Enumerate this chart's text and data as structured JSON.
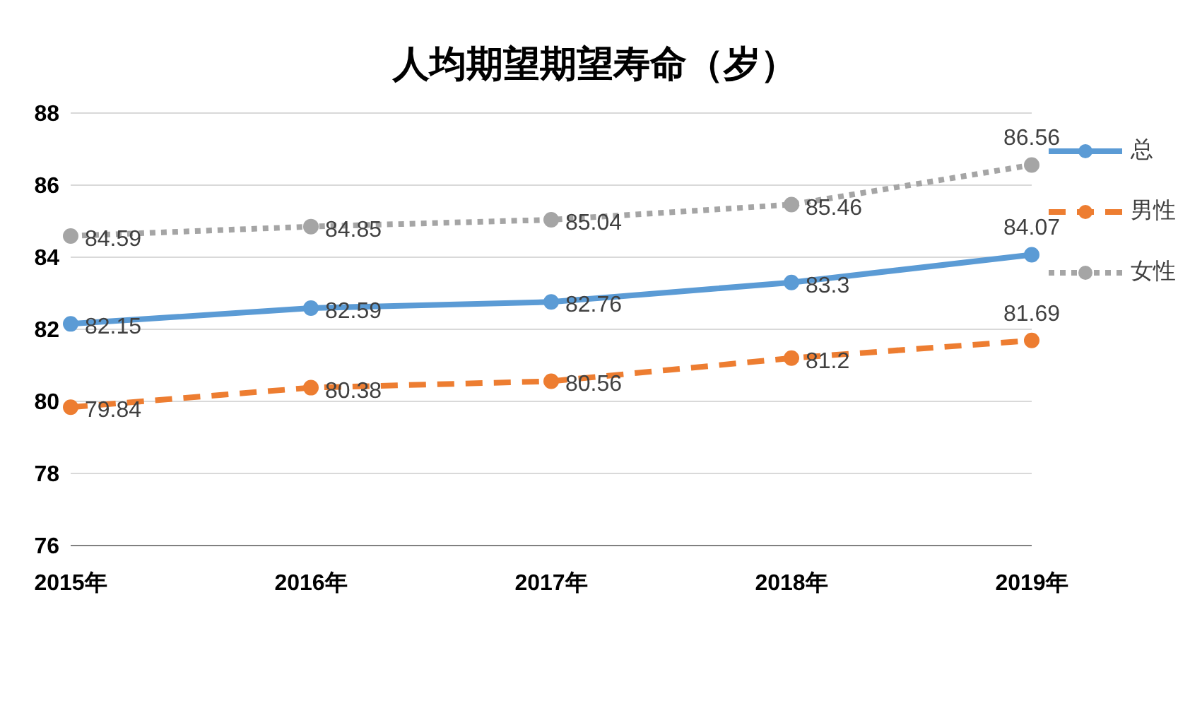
{
  "chart_data": {
    "type": "line",
    "title": "人均期望期望寿命（岁）",
    "categories": [
      "2015年",
      "2016年",
      "2017年",
      "2018年",
      "2019年"
    ],
    "series": [
      {
        "name": "总",
        "color": "#5b9bd5",
        "line_style": "solid",
        "values": [
          82.15,
          82.59,
          82.76,
          83.3,
          84.07
        ]
      },
      {
        "name": "男性",
        "color": "#ed7d31",
        "line_style": "dashed",
        "values": [
          79.84,
          80.38,
          80.56,
          81.2,
          81.69
        ]
      },
      {
        "name": "女性",
        "color": "#a5a5a5",
        "line_style": "dotted",
        "values": [
          84.59,
          84.85,
          85.04,
          85.46,
          86.56
        ]
      }
    ],
    "ylim": [
      76,
      88
    ],
    "yticks": [
      76,
      78,
      80,
      82,
      84,
      86,
      88
    ],
    "grid": "y",
    "legend": "right",
    "marker": "circle",
    "data_labels": true
  }
}
